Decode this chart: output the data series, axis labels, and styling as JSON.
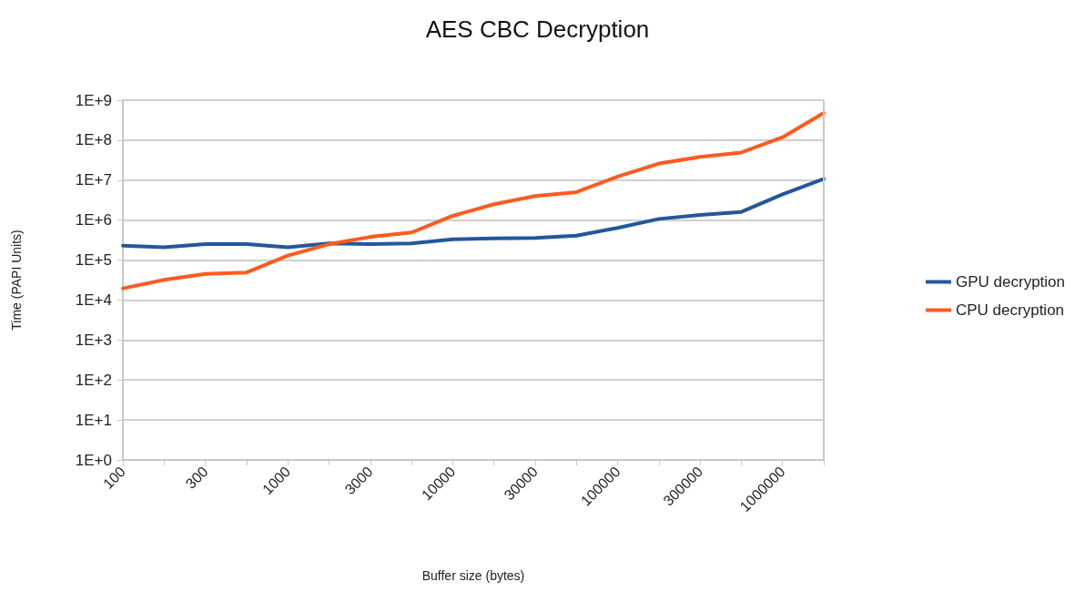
{
  "chart_data": {
    "type": "line",
    "title": "AES CBC Decryption",
    "xlabel": "Buffer size (bytes)",
    "ylabel": "Time (PAPI Units)",
    "categories": [
      "100",
      null,
      "300",
      null,
      "1000",
      null,
      "3000",
      null,
      "10000",
      null,
      "30000",
      null,
      "100000",
      null,
      "300000",
      null,
      "1000000",
      null
    ],
    "series": [
      {
        "name": "GPU decryption",
        "color": "#24579c",
        "values": [
          230000,
          210000,
          250000,
          250000,
          210000,
          260000,
          250000,
          260000,
          330000,
          350000,
          360000,
          410000,
          640000,
          1070000,
          1350000,
          1600000,
          4400000,
          10700000
        ]
      },
      {
        "name": "CPU decryption",
        "color": "#ff5b1f",
        "values": [
          19600,
          32000,
          45000,
          49000,
          130000,
          250000,
          380000,
          490000,
          1280000,
          2500000,
          4000000,
          5000000,
          12300000,
          26000000,
          38000000,
          49000000,
          118000000,
          480000000
        ]
      }
    ],
    "log": "y",
    "ylim": [
      1,
      1000000000
    ],
    "yticks": [
      {
        "value": 1,
        "label": "1E+0"
      },
      {
        "value": 10,
        "label": "1E+1"
      },
      {
        "value": 100,
        "label": "1E+2"
      },
      {
        "value": 1000,
        "label": "1E+3"
      },
      {
        "value": 10000,
        "label": "1E+4"
      },
      {
        "value": 100000,
        "label": "1E+5"
      },
      {
        "value": 1000000,
        "label": "1E+6"
      },
      {
        "value": 10000000,
        "label": "1E+7"
      },
      {
        "value": 100000000,
        "label": "1E+8"
      },
      {
        "value": 1000000000,
        "label": "1E+9"
      }
    ],
    "grid": "y",
    "legend": "right",
    "marker": "none",
    "line_style": "solid"
  }
}
